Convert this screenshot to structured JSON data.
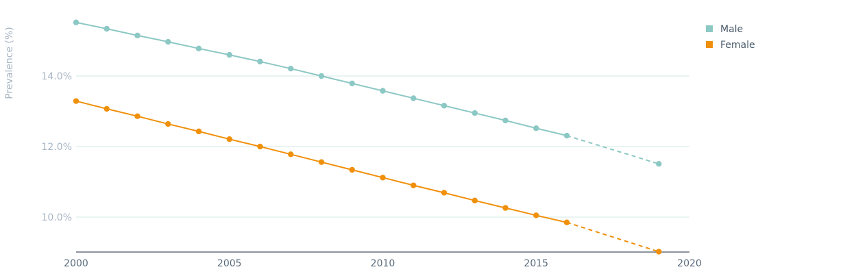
{
  "chart_data": {
    "type": "line",
    "ylabel": "Prevalence (%)",
    "xlim": [
      2000,
      2020
    ],
    "ylim": [
      9.0,
      15.6
    ],
    "x_ticks": [
      "2000",
      "2005",
      "2010",
      "2015",
      "2020"
    ],
    "y_ticks": [
      "10.0%",
      "12.0%",
      "14.0%"
    ],
    "y_tick_values": [
      10.0,
      12.0,
      14.0
    ],
    "grid": true,
    "legend_position": "top-right",
    "series": [
      {
        "name": "Male",
        "color": "#8cc8c4",
        "x": [
          2000,
          2001,
          2002,
          2003,
          2004,
          2005,
          2006,
          2007,
          2008,
          2009,
          2010,
          2011,
          2012,
          2013,
          2014,
          2015,
          2016
        ],
        "values": [
          15.52,
          15.34,
          15.15,
          14.97,
          14.78,
          14.6,
          14.41,
          14.21,
          14.0,
          13.79,
          13.58,
          13.37,
          13.16,
          12.95,
          12.74,
          12.52,
          12.31
        ],
        "projection": {
          "x": [
            2016,
            2019
          ],
          "values": [
            12.31,
            11.51
          ]
        }
      },
      {
        "name": "Female",
        "color": "#f0900a",
        "x": [
          2000,
          2001,
          2002,
          2003,
          2004,
          2005,
          2006,
          2007,
          2008,
          2009,
          2010,
          2011,
          2012,
          2013,
          2014,
          2015,
          2016
        ],
        "values": [
          13.29,
          13.07,
          12.86,
          12.64,
          12.43,
          12.21,
          12.0,
          11.78,
          11.56,
          11.34,
          11.12,
          10.9,
          10.69,
          10.47,
          10.26,
          10.05,
          9.85
        ],
        "projection": {
          "x": [
            2016,
            2019
          ],
          "values": [
            9.85,
            9.02
          ]
        }
      }
    ]
  }
}
